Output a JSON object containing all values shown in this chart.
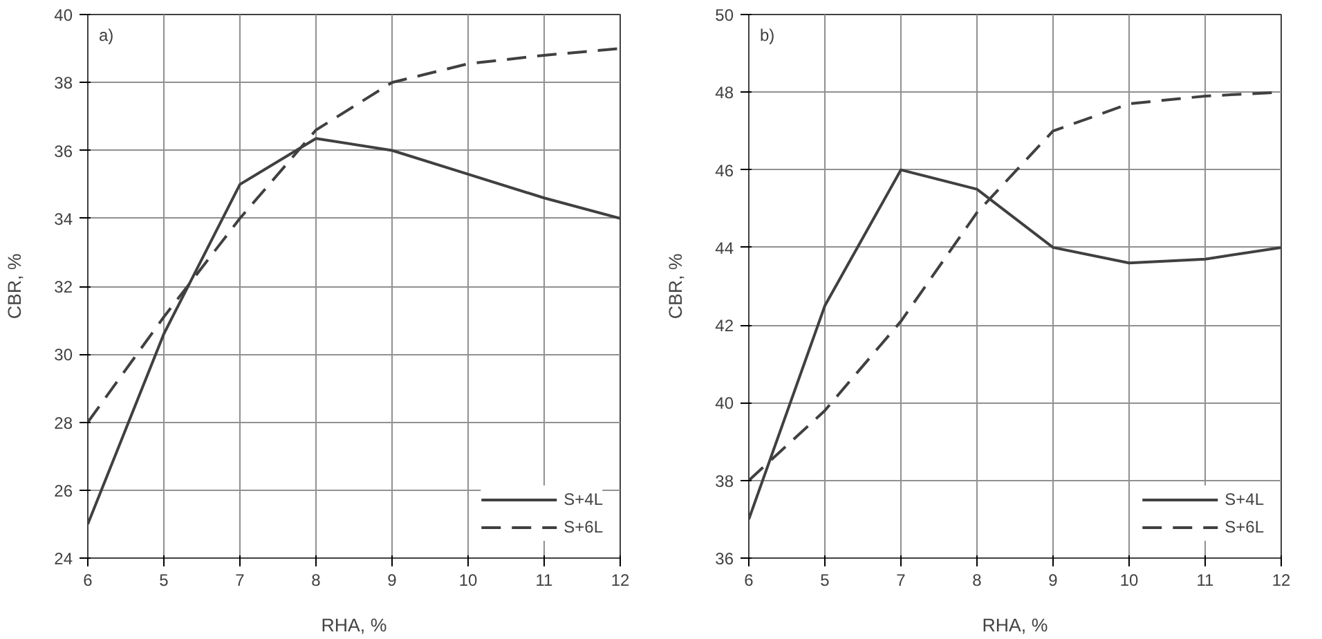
{
  "chart_data": [
    {
      "type": "line",
      "annotations": [
        "a)"
      ],
      "xlabel": "RHA, %",
      "ylabel": "CBR, %",
      "categories": [
        "6",
        "5",
        "7",
        "8",
        "9",
        "10",
        "11",
        "12"
      ],
      "ylim": [
        24,
        40
      ],
      "yticks": [
        24,
        26,
        28,
        30,
        32,
        34,
        36,
        38,
        40
      ],
      "grid": true,
      "legend": "bottom right",
      "series": [
        {
          "name": "S+4L",
          "color": "#404040",
          "line_style": "solid",
          "values": [
            25,
            30.6,
            35,
            36.35,
            36,
            35.3,
            34.6,
            34
          ]
        },
        {
          "name": "S+6L",
          "color": "#404040",
          "line_style": "dashed",
          "values": [
            28,
            31.1,
            34,
            36.6,
            38,
            38.55,
            38.8,
            39
          ]
        }
      ]
    },
    {
      "type": "line",
      "annotations": [
        "b)"
      ],
      "xlabel": "RHA, %",
      "ylabel": "CBR, %",
      "categories": [
        "6",
        "5",
        "7",
        "8",
        "9",
        "10",
        "11",
        "12"
      ],
      "ylim": [
        36,
        50
      ],
      "yticks": [
        36,
        38,
        40,
        42,
        44,
        46,
        48,
        50
      ],
      "grid": true,
      "legend": "bottom right",
      "series": [
        {
          "name": "S+4L",
          "color": "#404040",
          "line_style": "solid",
          "values": [
            37,
            42.5,
            46,
            45.5,
            44,
            43.6,
            43.7,
            44
          ]
        },
        {
          "name": "S+6L",
          "color": "#404040",
          "line_style": "dashed",
          "values": [
            38,
            39.8,
            42.1,
            44.9,
            47,
            47.7,
            47.9,
            48
          ]
        }
      ]
    }
  ]
}
